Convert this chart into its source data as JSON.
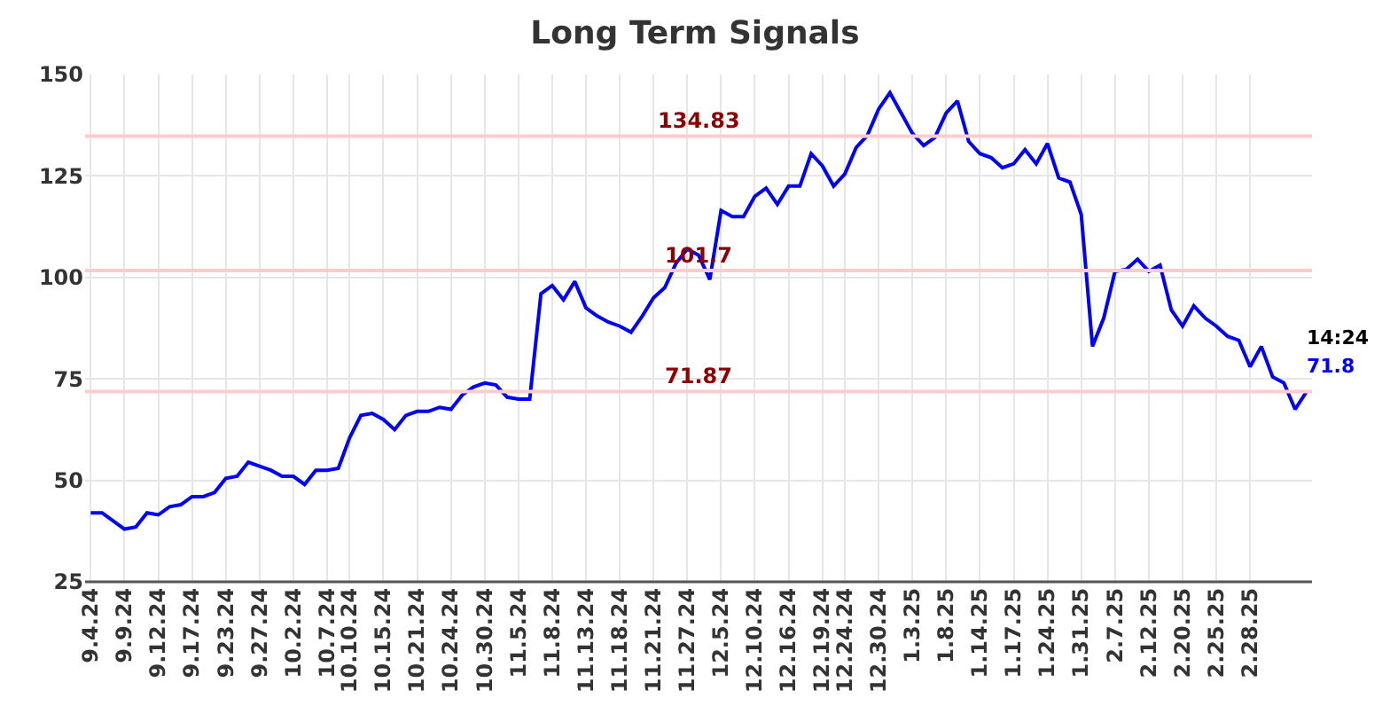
{
  "chart_data": {
    "type": "line",
    "title": "Long Term Signals",
    "categories": [
      "9.4.24",
      null,
      null,
      "9.9.24",
      null,
      null,
      "9.12.24",
      null,
      null,
      "9.17.24",
      null,
      null,
      "9.23.24",
      null,
      null,
      "9.27.24",
      null,
      null,
      "10.2.24",
      null,
      null,
      "10.7.24",
      null,
      "10.10.24",
      null,
      null,
      "10.15.24",
      null,
      null,
      "10.21.24",
      null,
      null,
      "10.24.24",
      null,
      null,
      "10.30.24",
      null,
      null,
      "11.5.24",
      null,
      null,
      "11.8.24",
      null,
      null,
      "11.13.24",
      null,
      null,
      "11.18.24",
      null,
      null,
      "11.21.24",
      null,
      null,
      "11.27.24",
      null,
      null,
      "12.5.24",
      null,
      null,
      "12.10.24",
      null,
      null,
      "12.16.24",
      null,
      null,
      "12.19.24",
      null,
      "12.24.24",
      null,
      null,
      "12.30.24",
      null,
      null,
      "1.3.25",
      null,
      null,
      "1.8.25",
      null,
      null,
      "1.14.25",
      null,
      null,
      "1.17.25",
      null,
      null,
      "1.24.25",
      null,
      null,
      "1.31.25",
      null,
      null,
      "2.7.25",
      null,
      null,
      "2.12.25",
      null,
      null,
      "2.20.25",
      null,
      null,
      "2.25.25",
      null,
      null,
      "2.28.25",
      null,
      null,
      null,
      null,
      null
    ],
    "series": [
      {
        "color": "#0000ff",
        "values": [
          42,
          42,
          40,
          38,
          38.5,
          42,
          41.5,
          43.5,
          44,
          46,
          46,
          47,
          50.5,
          51,
          54.5,
          53.5,
          52.5,
          51,
          51,
          49,
          52.5,
          52.5,
          53,
          60.5,
          66,
          66.5,
          65,
          62.5,
          66,
          67,
          67,
          68,
          67.5,
          71,
          73,
          74,
          73.5,
          70.5,
          70,
          70,
          96,
          98,
          94.5,
          99,
          92.5,
          90.5,
          89,
          88,
          86.5,
          90.5,
          95,
          97.5,
          103.5,
          107,
          105.5,
          99.5,
          116.5,
          115,
          115,
          120,
          122,
          118,
          122.5,
          122.5,
          130.5,
          127.5,
          122.5,
          125.5,
          132,
          135,
          141.5,
          145.5,
          140.5,
          135.5,
          132.5,
          134.5,
          140.5,
          143.5,
          133.5,
          130.5,
          129.5,
          127,
          128,
          131.5,
          128,
          133,
          124.5,
          123.5,
          115.5,
          83,
          90,
          101.5,
          102,
          104.5,
          101.5,
          103,
          92,
          88,
          93,
          90,
          88,
          85.5,
          84.5,
          78,
          83,
          75.5,
          74,
          67.5,
          71.8
        ],
        "value_labels": [
          null,
          null,
          null,
          null,
          null,
          null,
          null,
          null,
          null,
          null,
          null,
          null,
          null,
          null,
          null,
          null,
          null,
          null,
          null,
          null,
          null,
          null,
          null,
          null,
          null,
          null,
          null,
          null,
          null,
          null,
          null,
          null,
          null,
          null,
          null,
          null,
          null,
          null,
          null,
          null,
          null,
          null,
          null,
          null,
          null,
          null,
          null,
          null,
          null,
          null,
          null,
          null,
          null,
          null,
          null,
          null,
          null,
          null,
          null,
          null,
          null,
          null,
          null,
          null,
          null,
          null,
          null,
          null,
          null,
          null,
          null,
          null,
          null,
          null,
          null,
          null,
          null,
          null,
          null,
          null,
          null,
          null,
          null,
          null,
          null,
          null,
          null,
          null,
          null,
          null,
          null,
          null,
          null,
          null,
          null,
          null,
          null,
          null,
          null,
          null,
          null,
          null,
          null,
          null,
          null,
          null,
          null,
          null,
          "71.8"
        ]
      }
    ],
    "ylim": [
      25,
      150
    ],
    "yticks": [
      25,
      50,
      75,
      100,
      125,
      150
    ],
    "grid": true,
    "line_style": "solid",
    "ref_lines": [
      {
        "axis": "y",
        "value": 134.83,
        "label": "134.83",
        "color": "#ffcccc"
      },
      {
        "axis": "y",
        "value": 101.7,
        "label": "101.7",
        "color": "#ffcccc"
      },
      {
        "axis": "y",
        "value": 71.87,
        "label": "71.87",
        "color": "#ffcccc"
      }
    ],
    "annotations": [
      "14:24"
    ]
  }
}
